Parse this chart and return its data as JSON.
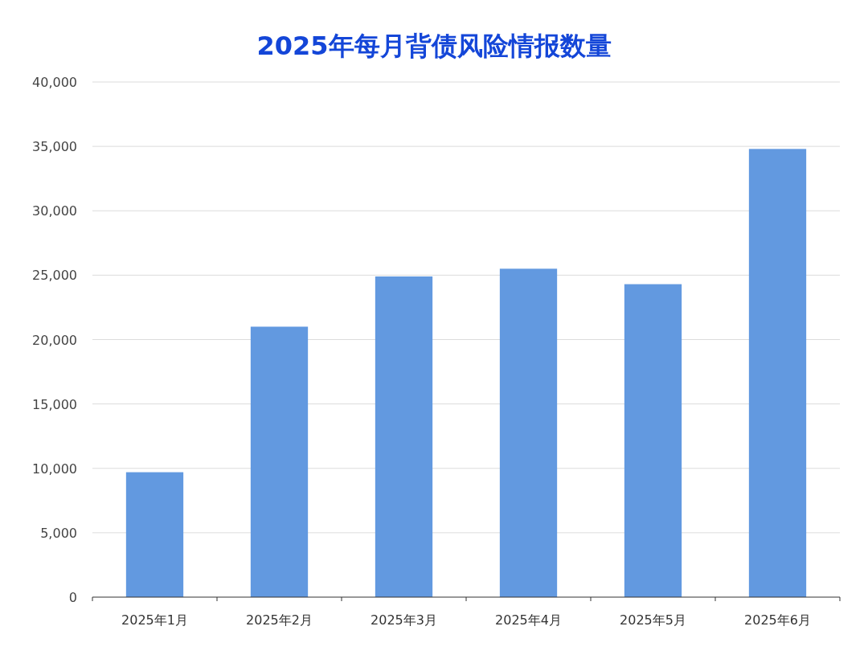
{
  "chart_data": {
    "type": "bar",
    "title": "2025年每月背债风险情报数量",
    "categories": [
      "2025年1月",
      "2025年2月",
      "2025年3月",
      "2025年4月",
      "2025年5月",
      "2025年6月"
    ],
    "values": [
      9700,
      21000,
      24900,
      25500,
      24300,
      34800
    ],
    "color": "#6299e0",
    "ylim": [
      0,
      40000
    ],
    "yticks": [
      {
        "value": 0,
        "label": "0"
      },
      {
        "value": 5000,
        "label": "5,000"
      },
      {
        "value": 10000,
        "label": "10,000"
      },
      {
        "value": 15000,
        "label": "15,000"
      },
      {
        "value": 20000,
        "label": "20,000"
      },
      {
        "value": 25000,
        "label": "25,000"
      },
      {
        "value": 30000,
        "label": "30,000"
      },
      {
        "value": 35000,
        "label": "35,000"
      },
      {
        "value": 40000,
        "label": "40,000"
      }
    ],
    "grid": "y"
  }
}
